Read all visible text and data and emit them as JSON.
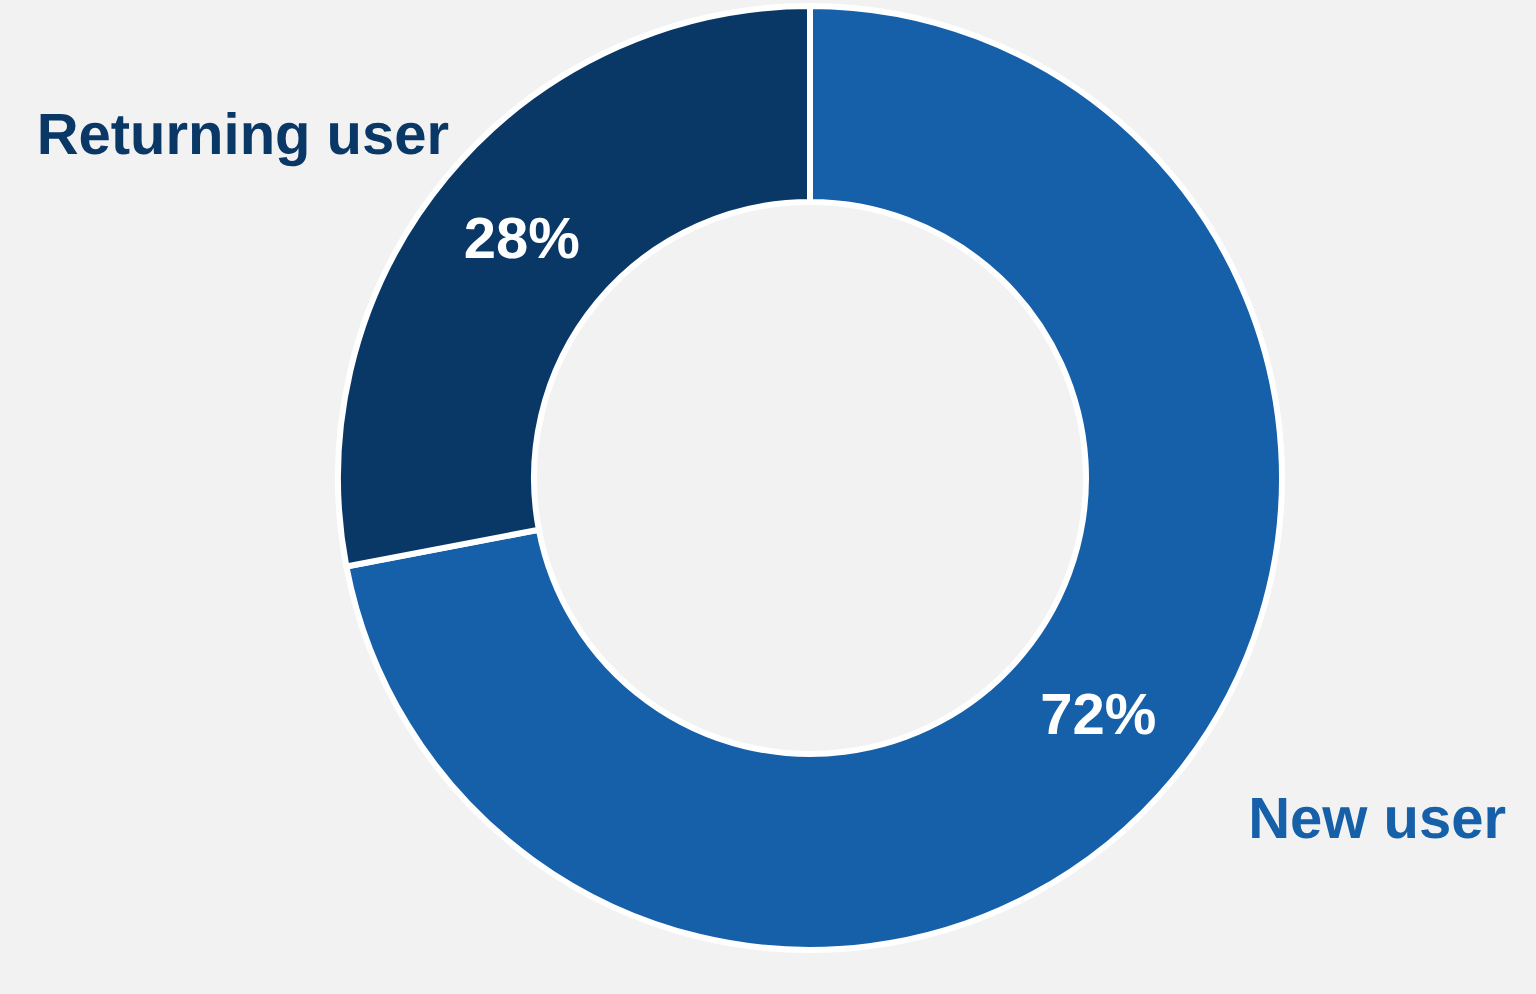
{
  "chart_data": {
    "type": "donut",
    "categories": [
      "New user",
      "Returning user"
    ],
    "values": [
      72,
      28
    ],
    "colors": [
      "#1560a8",
      "#0a3866"
    ],
    "value_labels": [
      "72%",
      "28%"
    ]
  }
}
